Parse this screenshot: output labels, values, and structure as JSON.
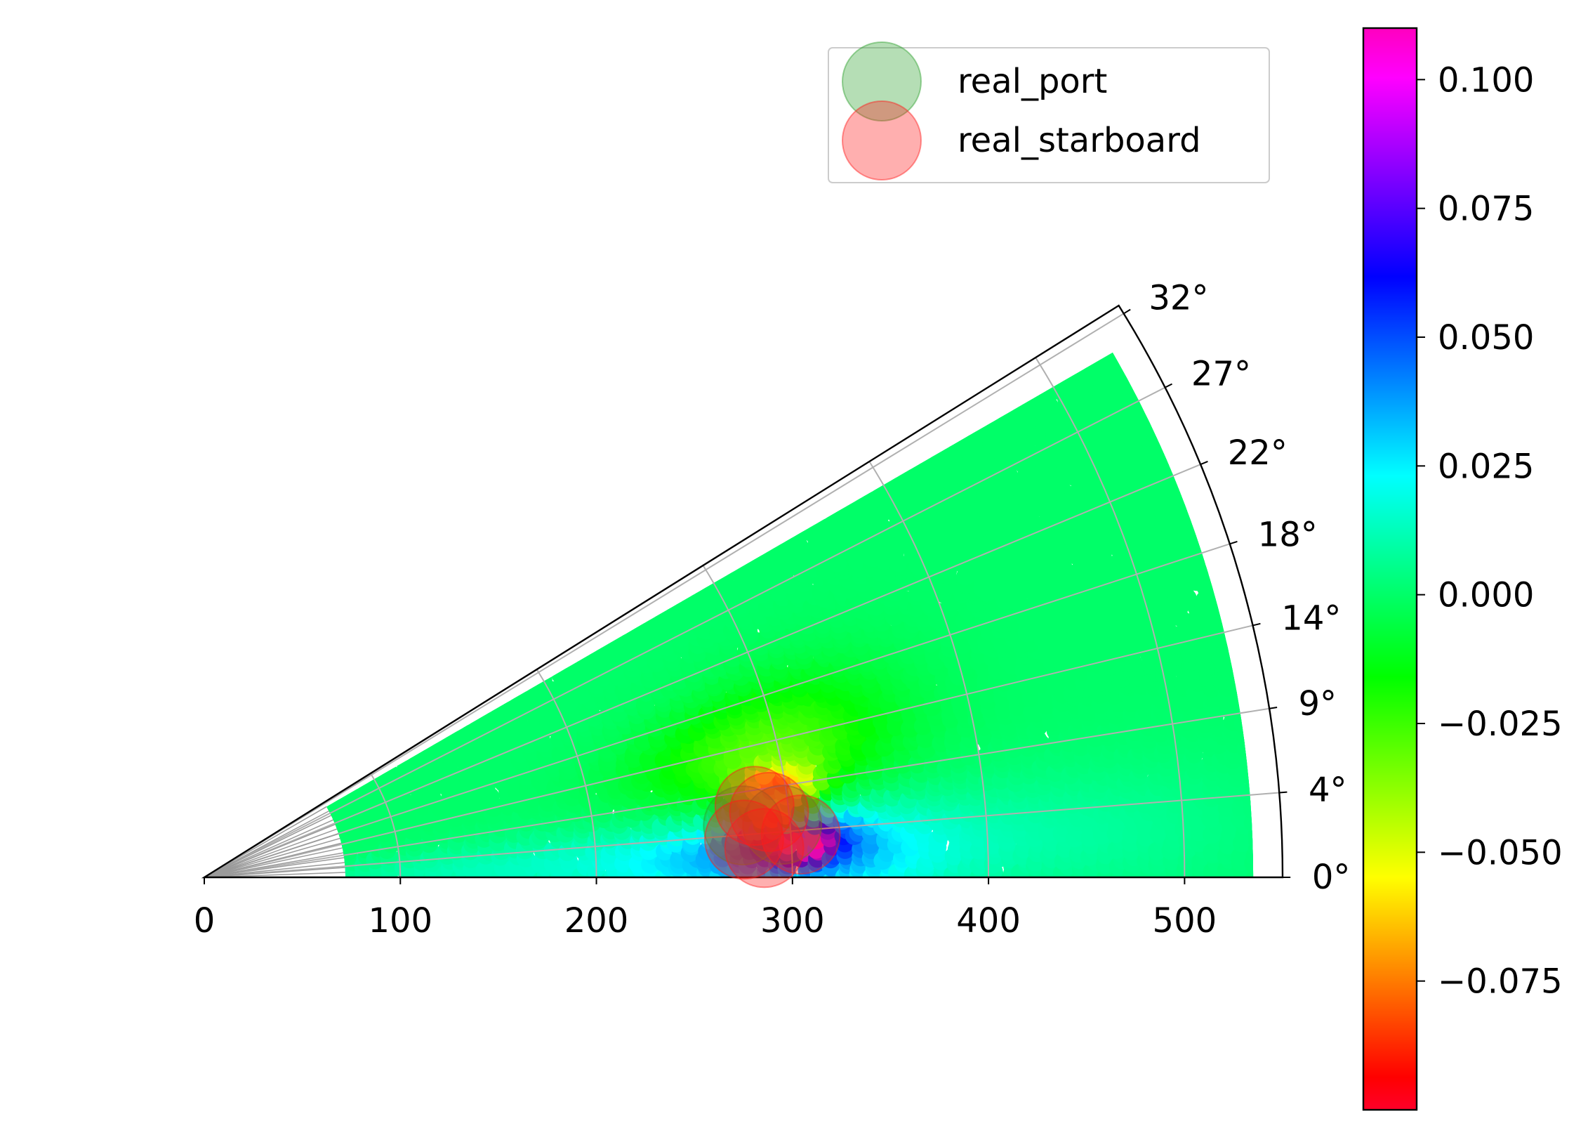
{
  "chart_data": {
    "type": "scatter",
    "projection": "polar-sector",
    "r_ticks": [
      0,
      100,
      200,
      300,
      400,
      500
    ],
    "r_tick_labels": [
      "0",
      "100",
      "200",
      "300",
      "400",
      "500"
    ],
    "r_range": [
      0,
      550
    ],
    "theta_range_deg": [
      0,
      32
    ],
    "theta_ticks_deg": [
      0,
      4.5,
      9,
      13.5,
      18,
      22.5,
      27,
      31.5
    ],
    "theta_tick_labels": [
      "0°",
      "4°",
      "9°",
      "14°",
      "18°",
      "22°",
      "27°",
      "32°"
    ],
    "inner_theta_ticks_deg": [
      0,
      2,
      4,
      6,
      8,
      10,
      12,
      14,
      16,
      18,
      20,
      22,
      24,
      26,
      28,
      30,
      32
    ],
    "grid": true,
    "field": {
      "r_range": [
        72,
        535
      ],
      "theta_range_deg": [
        0,
        30
      ],
      "background_value": 0.0,
      "anomalies": [
        {
          "r": 295,
          "theta_deg": 13,
          "amplitude": -0.03,
          "sigma_r": 45,
          "sigma_theta_deg": 4.5
        },
        {
          "r": 298,
          "theta_deg": 9,
          "amplitude": -0.055,
          "sigma_r": 14,
          "sigma_theta_deg": 1.6
        },
        {
          "r": 292,
          "theta_deg": 6,
          "amplitude": -0.085,
          "sigma_r": 8,
          "sigma_theta_deg": 0.9
        },
        {
          "r": 295,
          "theta_deg": 2.5,
          "amplitude": 0.04,
          "sigma_r": 55,
          "sigma_theta_deg": 3.2
        },
        {
          "r": 305,
          "theta_deg": 4,
          "amplitude": 0.045,
          "sigma_r": 20,
          "sigma_theta_deg": 1.5
        },
        {
          "r": 307,
          "theta_deg": 3.5,
          "amplitude": 0.06,
          "sigma_r": 8,
          "sigma_theta_deg": 0.9
        },
        {
          "r": 150,
          "theta_deg": 2,
          "amplitude": 0.012,
          "sigma_r": 70,
          "sigma_theta_deg": 4
        },
        {
          "r": 440,
          "theta_deg": 3,
          "amplitude": 0.008,
          "sigma_r": 70,
          "sigma_theta_deg": 3
        }
      ]
    },
    "series": [
      {
        "name": "real_port",
        "color": "#2ca02c",
        "alpha": 0.35,
        "points": [
          {
            "r": 276,
            "theta_deg": 5.5
          },
          {
            "r": 296,
            "theta_deg": 5.2
          }
        ]
      },
      {
        "name": "real_starboard",
        "color": "#ff1a1a",
        "alpha": 0.35,
        "points": [
          {
            "r": 283,
            "theta_deg": 7.4
          },
          {
            "r": 290,
            "theta_deg": 6.6
          },
          {
            "r": 276,
            "theta_deg": 4.0
          },
          {
            "r": 286,
            "theta_deg": 3.0
          },
          {
            "r": 305,
            "theta_deg": 4.1
          }
        ]
      }
    ],
    "legend": {
      "placement": "top-right",
      "entries": [
        {
          "label": "real_port",
          "color": "#2ca02c"
        },
        {
          "label": "real_starboard",
          "color": "#ff1a1a"
        }
      ]
    },
    "colorbar": {
      "colormap": "gist_rainbow",
      "range": [
        -0.1,
        0.11
      ],
      "ticks": [
        0.1,
        0.075,
        0.05,
        0.025,
        0.0,
        -0.025,
        -0.05,
        -0.075
      ],
      "tick_labels": [
        "0.100",
        "0.075",
        "0.050",
        "0.025",
        "0.000",
        "−0.025",
        "−0.050",
        "−0.075"
      ]
    }
  }
}
